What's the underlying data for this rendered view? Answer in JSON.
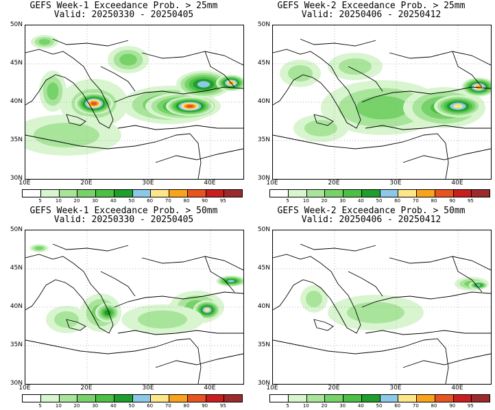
{
  "panels": [
    {
      "title": "GEFS Week-1 Exceedance Prob. > 25mm",
      "valid": "Valid: 20250330 - 20250405"
    },
    {
      "title": "GEFS Week-2 Exceedance Prob. > 25mm",
      "valid": "Valid: 20250406 - 20250412"
    },
    {
      "title": "GEFS Week-1 Exceedance Prob. > 50mm",
      "valid": "Valid: 20250330 - 20250405"
    },
    {
      "title": "GEFS Week-2 Exceedance Prob. > 50mm",
      "valid": "Valid: 20250406 - 20250412"
    }
  ],
  "axes": {
    "lat_labels": [
      "50N",
      "45N",
      "40N",
      "35N",
      "30N"
    ],
    "lon_labels": [
      "10E",
      "20E",
      "30E",
      "40E"
    ]
  },
  "colorbar": {
    "labels": [
      "5",
      "10",
      "20",
      "30",
      "40",
      "50",
      "60",
      "70",
      "80",
      "90",
      "95"
    ],
    "colors": [
      "#ffffff",
      "#d8f5cf",
      "#a8e59b",
      "#78d26a",
      "#4cbf45",
      "#1e9e2a",
      "#8cc8e8",
      "#fde68a",
      "#f7a41c",
      "#e8541f",
      "#c81e1e",
      "#9c2a2a"
    ]
  }
}
